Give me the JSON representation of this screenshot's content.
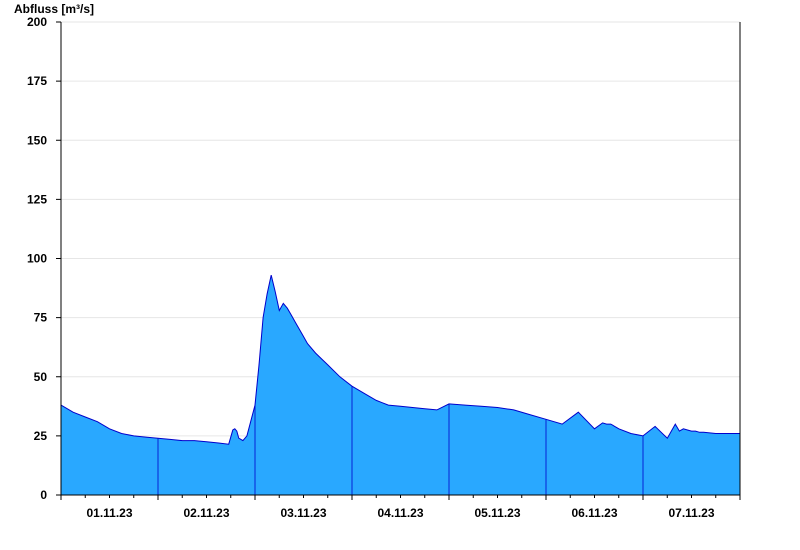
{
  "chart_data": {
    "type": "area",
    "title": "",
    "xlabel": "",
    "ylabel": "Abfluss [m³/s]",
    "ylim": [
      0,
      200
    ],
    "yticks": [
      0,
      25,
      50,
      75,
      100,
      125,
      150,
      175,
      200
    ],
    "xlim": [
      "2023-11-01 00:00",
      "2023-11-08 00:00"
    ],
    "xticks": [
      "01.11.23",
      "02.11.23",
      "03.11.23",
      "04.11.23",
      "05.11.23",
      "06.11.23",
      "07.11.23"
    ],
    "grid": true,
    "colors": {
      "fill": "#29a8ff",
      "line": "#0000cc",
      "grid": "#e6e6e6",
      "axis": "#000000"
    },
    "series": [
      {
        "x": [
          "2023-11-01 00:00",
          "2023-11-01 03:00",
          "2023-11-01 06:00",
          "2023-11-01 09:00",
          "2023-11-01 12:00",
          "2023-11-01 15:00",
          "2023-11-01 18:00",
          "2023-11-01 21:00",
          "2023-11-02 00:00",
          "2023-11-02 03:00",
          "2023-11-02 06:00",
          "2023-11-02 09:00",
          "2023-11-02 12:00",
          "2023-11-02 15:00",
          "2023-11-02 17:30",
          "2023-11-02 18:30",
          "2023-11-02 19:00",
          "2023-11-02 19:30",
          "2023-11-02 20:00",
          "2023-11-02 21:00",
          "2023-11-02 22:00",
          "2023-11-03 00:00",
          "2023-11-03 01:00",
          "2023-11-03 02:00",
          "2023-11-03 03:00",
          "2023-11-03 04:00",
          "2023-11-03 05:00",
          "2023-11-03 06:00",
          "2023-11-03 07:00",
          "2023-11-03 08:00",
          "2023-11-03 09:00",
          "2023-11-03 10:00",
          "2023-11-03 11:00",
          "2023-11-03 12:00",
          "2023-11-03 13:00",
          "2023-11-03 15:00",
          "2023-11-03 18:00",
          "2023-11-03 21:00",
          "2023-11-04 00:00",
          "2023-11-04 03:00",
          "2023-11-04 06:00",
          "2023-11-04 09:00",
          "2023-11-04 12:00",
          "2023-11-04 15:00",
          "2023-11-04 18:00",
          "2023-11-04 21:00",
          "2023-11-05 00:00",
          "2023-11-05 04:00",
          "2023-11-05 08:00",
          "2023-11-05 12:00",
          "2023-11-05 16:00",
          "2023-11-05 20:00",
          "2023-11-06 00:00",
          "2023-11-06 04:00",
          "2023-11-06 08:00",
          "2023-11-06 12:00",
          "2023-11-06 14:00",
          "2023-11-06 15:00",
          "2023-11-06 16:00",
          "2023-11-06 16:30",
          "2023-11-06 17:00",
          "2023-11-06 17:30",
          "2023-11-06 18:00",
          "2023-11-06 21:00",
          "2023-11-07 00:00",
          "2023-11-07 03:00",
          "2023-11-07 06:00",
          "2023-11-07 08:00",
          "2023-11-07 09:00",
          "2023-11-07 10:00",
          "2023-11-07 11:00",
          "2023-11-07 12:00",
          "2023-11-07 13:00",
          "2023-11-07 14:00",
          "2023-11-07 15:00",
          "2023-11-07 18:00",
          "2023-11-07 21:00",
          "2023-11-08 00:00"
        ],
        "y": [
          38,
          35,
          33,
          31,
          28,
          26,
          25,
          24.5,
          24,
          23.5,
          23,
          23,
          22.5,
          22,
          21.5,
          27.5,
          28,
          27,
          24,
          23,
          25,
          38,
          55,
          75,
          85,
          93,
          86,
          78,
          81,
          79,
          76,
          73,
          70,
          67,
          64,
          60,
          55,
          50,
          46,
          43,
          40,
          38,
          37.5,
          37,
          36.5,
          36,
          38.5,
          38,
          37.5,
          37,
          36,
          34,
          32,
          30,
          35,
          28,
          30.5,
          30,
          30,
          29.5,
          29,
          28.5,
          28,
          26,
          25,
          29,
          24,
          30,
          27,
          28,
          27.5,
          27,
          27,
          26.5,
          26.5,
          26,
          26,
          26
        ]
      }
    ]
  }
}
